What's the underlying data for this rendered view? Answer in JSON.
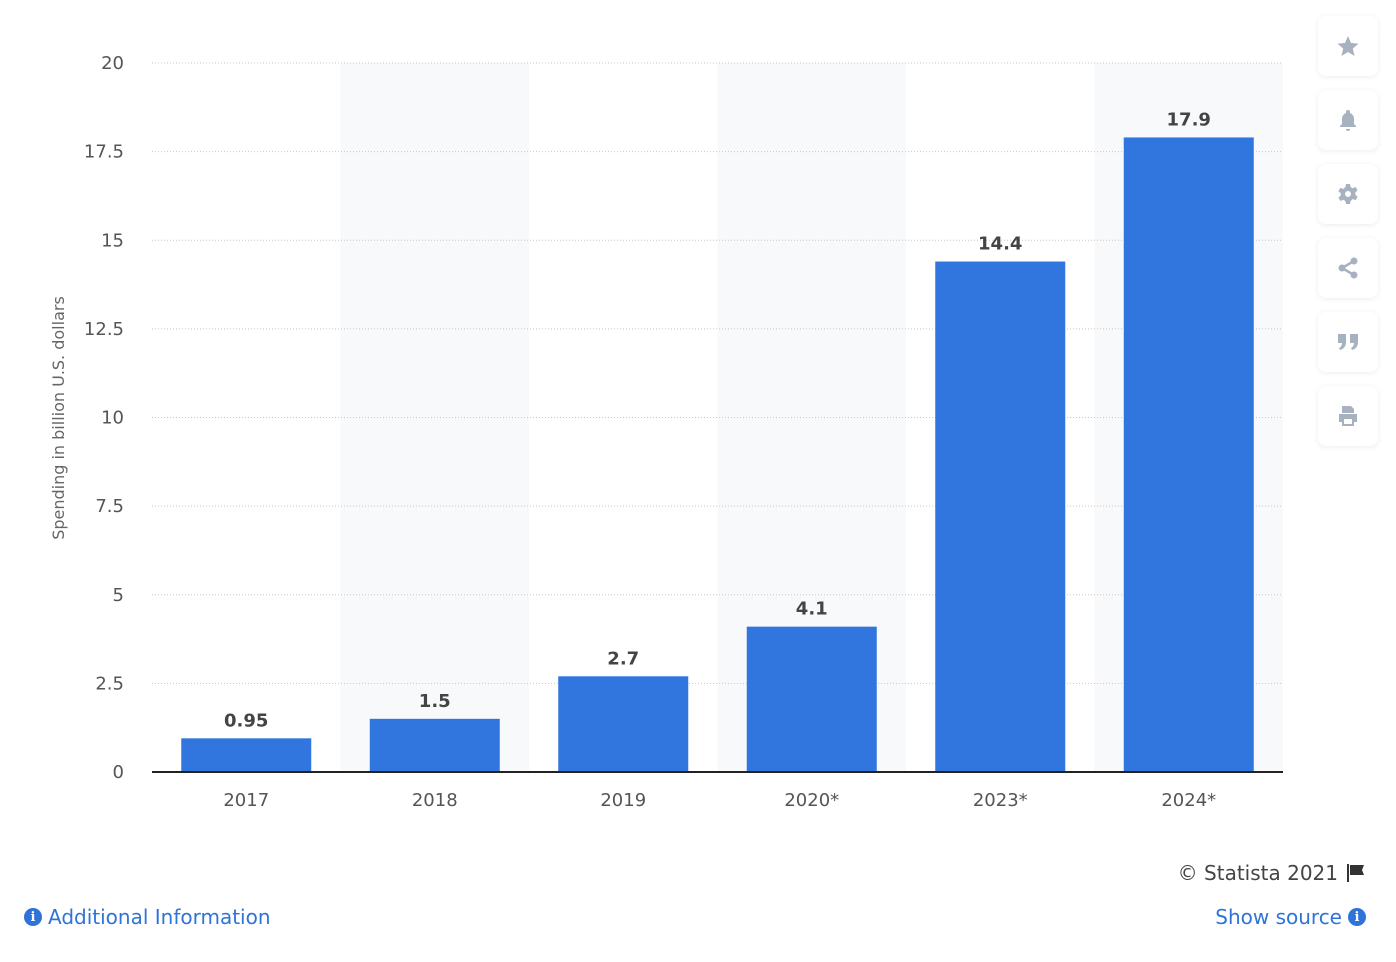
{
  "chart_data": {
    "type": "bar",
    "title": "",
    "xlabel": "",
    "ylabel": "Spending in billion U.S. dollars",
    "categories": [
      "2017",
      "2018",
      "2019",
      "2020*",
      "2023*",
      "2024*"
    ],
    "values": [
      0.95,
      1.5,
      2.7,
      4.1,
      14.4,
      17.9
    ],
    "data_labels": [
      "0.95",
      "1.5",
      "2.7",
      "4.1",
      "14.4",
      "17.9"
    ],
    "ylim": [
      0,
      20
    ],
    "yticks": [
      "0",
      "2.5",
      "5",
      "7.5",
      "10",
      "12.5",
      "15",
      "17.5",
      "20"
    ],
    "grid": true,
    "bar_color": "#3176de"
  },
  "sidebar": {
    "icons": [
      "star-icon",
      "bell-icon",
      "gear-icon",
      "share-icon",
      "quote-icon",
      "print-icon"
    ]
  },
  "footer": {
    "credit": "© Statista 2021",
    "additional_info": "Additional Information",
    "show_source": "Show source",
    "info_glyph": "i"
  }
}
